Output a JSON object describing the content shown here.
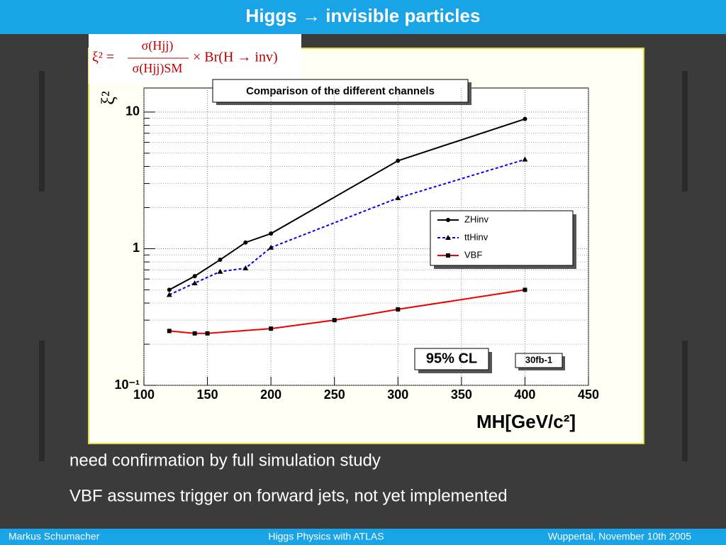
{
  "header": {
    "title": "Higgs → invisible particles"
  },
  "formula": {
    "lhs": "ξ² =",
    "numerator": "σ(Hjj)",
    "denominator": "σ(Hjj)SM",
    "rhs": "× Br(H → inv)"
  },
  "chart_data": {
    "type": "line",
    "title": "Comparison of the different channels",
    "xlabel": "MH[GeV/c²]",
    "ylabel": "ξ²",
    "xlim": [
      100,
      450
    ],
    "xticks": [
      100,
      150,
      200,
      250,
      300,
      350,
      400,
      450
    ],
    "ylim": [
      0.1,
      15
    ],
    "ylog": true,
    "yticks": [
      {
        "value": 0.1,
        "label": "10⁻¹"
      },
      1,
      10
    ],
    "yticks_minor": [
      0.2,
      0.3,
      0.4,
      0.5,
      0.6,
      0.7,
      0.8,
      0.9,
      2,
      3,
      4,
      5,
      6,
      7,
      8,
      9
    ],
    "grid": true,
    "legend": "center-right",
    "series": [
      {
        "name": "ZHinv",
        "color": "#000000",
        "marker": "circle",
        "dash": "solid",
        "x": [
          120,
          140,
          160,
          180,
          200,
          300,
          400
        ],
        "values": [
          0.5,
          0.63,
          0.83,
          1.11,
          1.29,
          4.4,
          8.9
        ]
      },
      {
        "name": "ttHinv",
        "color": "#0000ee",
        "marker": "triangle",
        "dash": "dashed",
        "x": [
          120,
          140,
          160,
          180,
          200,
          300,
          400
        ],
        "values": [
          0.46,
          0.56,
          0.68,
          0.72,
          1.02,
          2.35,
          4.5
        ]
      },
      {
        "name": "VBF",
        "color": "#ee0000",
        "marker": "square",
        "dash": "solid",
        "x": [
          120,
          140,
          150,
          200,
          250,
          300,
          400
        ],
        "values": [
          0.25,
          0.24,
          0.24,
          0.26,
          0.3,
          0.36,
          0.5
        ]
      }
    ],
    "annotations": [
      "95% CL",
      "30fb-1"
    ]
  },
  "bullets": [
    "need confirmation by full simulation study",
    "VBF assumes trigger on forward jets, not yet implemented"
  ],
  "footer": {
    "author": "Markus  Schumacher",
    "talk": "Higgs Physics  with ATLAS",
    "venue": "Wuppertal, November 10th 2005"
  }
}
